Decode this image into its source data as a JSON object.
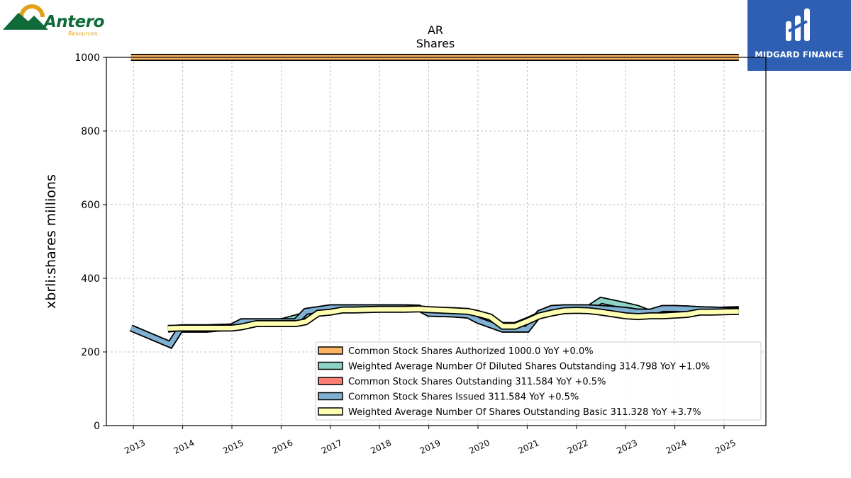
{
  "logos": {
    "left": {
      "name": "Antero",
      "sub": "Resources"
    },
    "right": {
      "name": "MIDGARD FINANCE"
    }
  },
  "chart_data": {
    "type": "line",
    "title": "AR",
    "subtitle": "Shares",
    "xlabel": "",
    "ylabel": "xbrli:shares millions",
    "xlim": [
      2012.45,
      2025.85
    ],
    "ylim": [
      0,
      1000
    ],
    "y_ticks": [
      0,
      200,
      400,
      600,
      800,
      1000
    ],
    "x_ticks": [
      "2013",
      "2014",
      "2015",
      "2016",
      "2017",
      "2018",
      "2019",
      "2020",
      "2021",
      "2022",
      "2023",
      "2024",
      "2025"
    ],
    "grid": true,
    "legend_position": "lower-right",
    "series": [
      {
        "name": "Common Stock Shares Authorized",
        "legend": "Common Stock Shares Authorized  1000.0 YoY +0.0%",
        "color": "#fdb462",
        "x": [
          2012.95,
          2025.3
        ],
        "y": [
          1000,
          1000
        ]
      },
      {
        "name": "Weighted Average Number Of Diluted Shares Outstanding",
        "legend": "Weighted Average Number Of Diluted Shares Outstanding  314.798 YoY +1.0%",
        "color": "#8dd3c7",
        "x": [
          2013.7,
          2014.0,
          2014.5,
          2015.0,
          2015.5,
          2016.0,
          2016.5,
          2017.0,
          2017.5,
          2018.0,
          2018.5,
          2018.8,
          2019.0,
          2019.5,
          2019.8,
          2020.0,
          2020.5,
          2020.75,
          2021.0,
          2021.25,
          2021.5,
          2021.75,
          2022.0,
          2022.25,
          2022.5,
          2022.75,
          2023.0,
          2023.25,
          2023.5,
          2023.75,
          2024.0,
          2024.25,
          2024.5,
          2024.75,
          2025.0,
          2025.3
        ],
        "y": [
          262,
          266,
          266,
          268,
          280,
          282,
          300,
          315,
          318,
          318,
          318,
          318,
          312,
          312,
          310,
          300,
          272,
          272,
          285,
          300,
          312,
          316,
          316,
          318,
          340,
          333,
          326,
          318,
          305,
          302,
          303,
          305,
          310,
          312,
          314,
          315
        ]
      },
      {
        "name": "Common Stock Shares Outstanding",
        "legend": "Common Stock Shares Outstanding  311.584 YoY +0.5%",
        "color": "#fb8072",
        "x": [
          2012.95,
          2013.75,
          2013.95,
          2014.5,
          2015.0,
          2015.2,
          2015.5,
          2016.0,
          2016.3,
          2016.5,
          2016.75,
          2017.0,
          2017.5,
          2018.0,
          2018.5,
          2018.8,
          2019.0,
          2019.5,
          2019.8,
          2020.0,
          2020.5,
          2020.75,
          2021.0,
          2021.25,
          2021.5,
          2021.75,
          2022.0,
          2022.25,
          2022.5,
          2022.75,
          2023.0,
          2023.25,
          2023.5,
          2023.75,
          2024.0,
          2024.25,
          2024.5,
          2024.75,
          2025.0,
          2025.3
        ],
        "y": [
          265,
          220,
          262,
          262,
          268,
          282,
          282,
          282,
          282,
          310,
          315,
          320,
          320,
          320,
          320,
          319,
          305,
          303,
          300,
          286,
          262,
          262,
          262,
          305,
          318,
          320,
          320,
          320,
          318,
          316,
          313,
          308,
          308,
          318,
          318,
          317,
          315,
          314,
          313,
          312
        ]
      },
      {
        "name": "Common Stock Shares Issued",
        "legend": "Common Stock Shares Issued  311.584 YoY +0.5%",
        "color": "#80b1d3",
        "x": [
          2012.95,
          2013.75,
          2013.95,
          2014.5,
          2015.0,
          2015.2,
          2015.5,
          2016.0,
          2016.3,
          2016.5,
          2016.75,
          2017.0,
          2017.5,
          2018.0,
          2018.5,
          2018.8,
          2019.0,
          2019.5,
          2019.8,
          2020.0,
          2020.5,
          2020.75,
          2021.0,
          2021.25,
          2021.5,
          2021.75,
          2022.0,
          2022.25,
          2022.5,
          2022.75,
          2023.0,
          2023.25,
          2023.5,
          2023.75,
          2024.0,
          2024.25,
          2024.5,
          2024.75,
          2025.0,
          2025.3
        ],
        "y": [
          265,
          220,
          262,
          262,
          268,
          282,
          282,
          282,
          282,
          310,
          315,
          320,
          320,
          320,
          320,
          319,
          305,
          303,
          300,
          286,
          262,
          262,
          262,
          305,
          318,
          320,
          320,
          320,
          318,
          316,
          313,
          308,
          308,
          318,
          318,
          317,
          315,
          314,
          313,
          312
        ]
      },
      {
        "name": "Weighted Average Number Of Shares Outstanding Basic",
        "legend": "Weighted Average Number Of Shares Outstanding Basic  311.328 YoY +3.7%",
        "color": "#ffffb3",
        "x": [
          2013.7,
          2014.0,
          2014.5,
          2015.0,
          2015.2,
          2015.5,
          2016.0,
          2016.3,
          2016.5,
          2016.75,
          2017.0,
          2017.25,
          2017.5,
          2018.0,
          2018.5,
          2018.8,
          2019.0,
          2019.5,
          2019.8,
          2020.0,
          2020.25,
          2020.5,
          2020.75,
          2021.0,
          2021.25,
          2021.5,
          2021.75,
          2022.0,
          2022.25,
          2022.5,
          2022.75,
          2023.0,
          2023.25,
          2023.5,
          2023.75,
          2024.0,
          2024.25,
          2024.5,
          2024.75,
          2025.0,
          2025.3
        ],
        "y": [
          264,
          265,
          265,
          265,
          268,
          277,
          277,
          277,
          282,
          305,
          308,
          314,
          314,
          316,
          316,
          317,
          315,
          312,
          310,
          304,
          295,
          270,
          270,
          283,
          298,
          306,
          312,
          313,
          312,
          308,
          303,
          298,
          296,
          298,
          298,
          300,
          302,
          308,
          308,
          309,
          310
        ]
      }
    ]
  }
}
